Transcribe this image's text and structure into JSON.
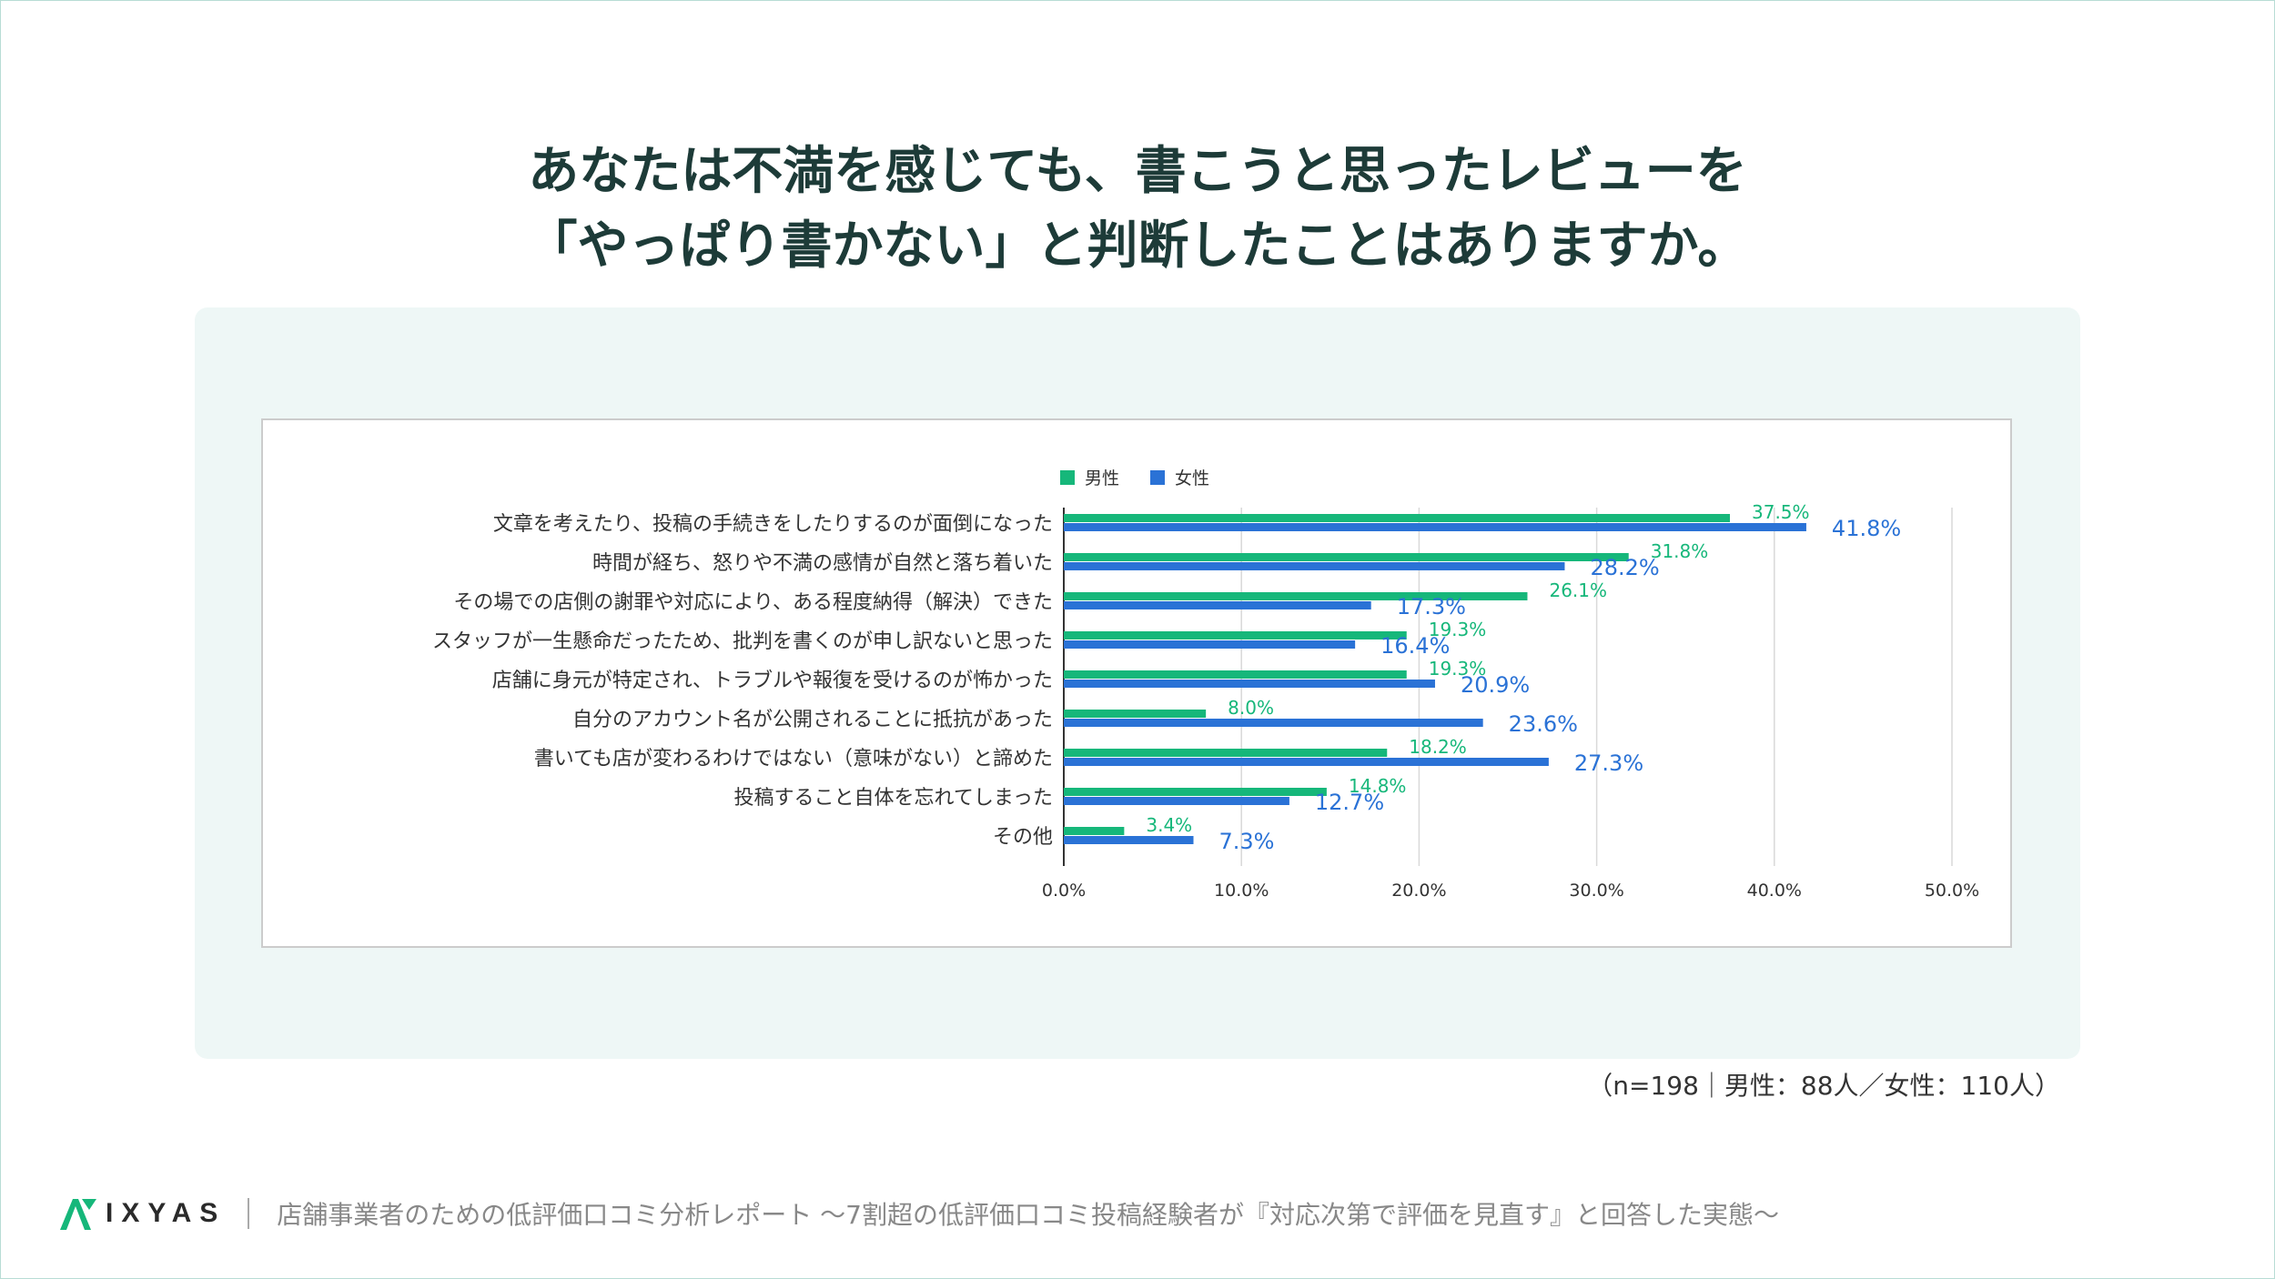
{
  "title_lines": [
    "あなたは不満を感じても、書こうと思ったレビューを",
    "「やっぱり書かない」と判断したことはありますか。"
  ],
  "sample_note": "（n=198｜男性：88人／女性：110人）",
  "footer": {
    "brand": "IXYAS",
    "report_title": "店舗事業者のための低評価口コミ分析レポート 〜7割超の低評価口コミ投稿経験者が『対応次第で評価を見直す』と回答した実態〜"
  },
  "colors": {
    "male": "#16b77a",
    "female": "#2a72d6",
    "title": "#1d3b38",
    "grid": "#d9d9d9"
  },
  "chart_data": {
    "type": "bar",
    "orientation": "horizontal",
    "categories": [
      "文章を考えたり、投稿の手続きをしたりするのが面倒になった",
      "時間が経ち、怒りや不満の感情が自然と落ち着いた",
      "その場での店側の謝罪や対応により、ある程度納得（解決）できた",
      "スタッフが一生懸命だったため、批判を書くのが申し訳ないと思った",
      "店舗に身元が特定され、トラブルや報復を受けるのが怖かった",
      "自分のアカウント名が公開されることに抵抗があった",
      "書いても店が変わるわけではない（意味がない）と諦めた",
      "投稿すること自体を忘れてしまった",
      "その他"
    ],
    "series": [
      {
        "name": "男性",
        "values": [
          37.5,
          31.8,
          26.1,
          19.3,
          19.3,
          8.0,
          18.2,
          14.8,
          3.4
        ],
        "labels": [
          "37.5%",
          "31.8%",
          "26.1%",
          "19.3%",
          "19.3%",
          "8.0%",
          "18.2%",
          "14.8%",
          "3.4%"
        ]
      },
      {
        "name": "女性",
        "values": [
          41.8,
          28.2,
          17.3,
          16.4,
          20.9,
          23.6,
          27.3,
          12.7,
          7.3
        ],
        "labels": [
          "41.8%",
          "28.2%",
          "17.3%",
          "16.4%",
          "20.9%",
          "23.6%",
          "27.3%",
          "12.7%",
          "7.3%"
        ]
      }
    ],
    "x_ticks": [
      "0.0%",
      "10.0%",
      "20.0%",
      "30.0%",
      "40.0%",
      "50.0%"
    ],
    "xlim": [
      0,
      50
    ],
    "legend_position": "top",
    "grid": true
  }
}
